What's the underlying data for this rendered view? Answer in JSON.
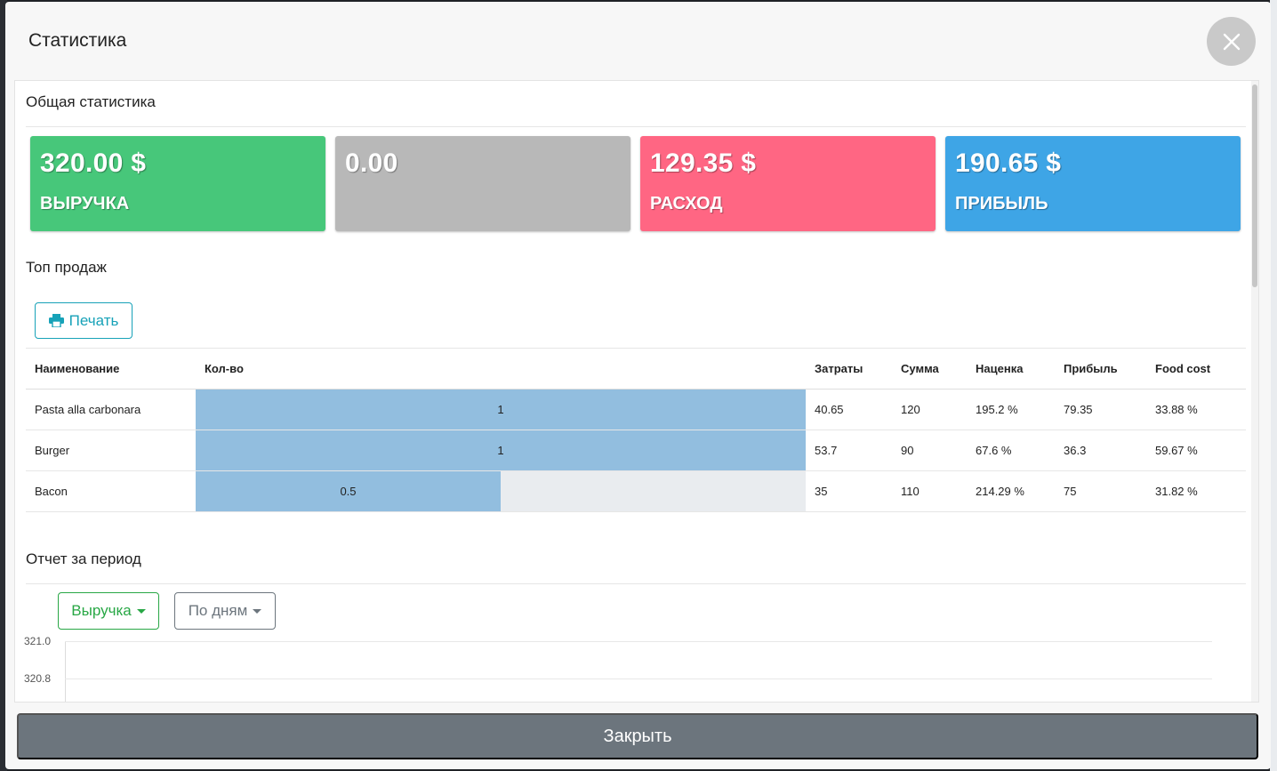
{
  "modal": {
    "title": "Статистика",
    "close_icon": "close-icon"
  },
  "general": {
    "title": "Общая статистика",
    "cards": [
      {
        "value": "320.00 $",
        "label": "ВЫРУЧКА",
        "color": "#47c77a"
      },
      {
        "value": "0.00",
        "label": "",
        "color": "#b8b8b8"
      },
      {
        "value": "129.35 $",
        "label": "РАСХОД",
        "color": "#ff6683"
      },
      {
        "value": "190.65 $",
        "label": "ПРИБЫЛЬ",
        "color": "#3ea5e6"
      }
    ]
  },
  "top_sales": {
    "title": "Топ продаж",
    "print_label": "Печать",
    "print_icon": "printer-icon",
    "columns": [
      "Наименование",
      "Кол-во",
      "Затраты",
      "Сумма",
      "Наценка",
      "Прибыль",
      "Food cost"
    ],
    "rows": [
      {
        "name": "Pasta alla carbonara",
        "qty": "1",
        "qty_fraction": 1.0,
        "cost": "40.65",
        "sum": "120",
        "markup": "195.2 %",
        "profit": "79.35",
        "food_cost": "33.88 %"
      },
      {
        "name": "Burger",
        "qty": "1",
        "qty_fraction": 1.0,
        "cost": "53.7",
        "sum": "90",
        "markup": "67.6 %",
        "profit": "36.3",
        "food_cost": "59.67 %"
      },
      {
        "name": "Bacon",
        "qty": "0.5",
        "qty_fraction": 0.5,
        "cost": "35",
        "sum": "110",
        "markup": "214.29 %",
        "profit": "75",
        "food_cost": "31.82 %"
      }
    ]
  },
  "period_report": {
    "title": "Отчет за период",
    "metric_dropdown": "Выручка",
    "period_dropdown": "По дням",
    "y_ticks": [
      "321.0",
      "320.8"
    ]
  },
  "footer": {
    "close_label": "Закрыть"
  }
}
